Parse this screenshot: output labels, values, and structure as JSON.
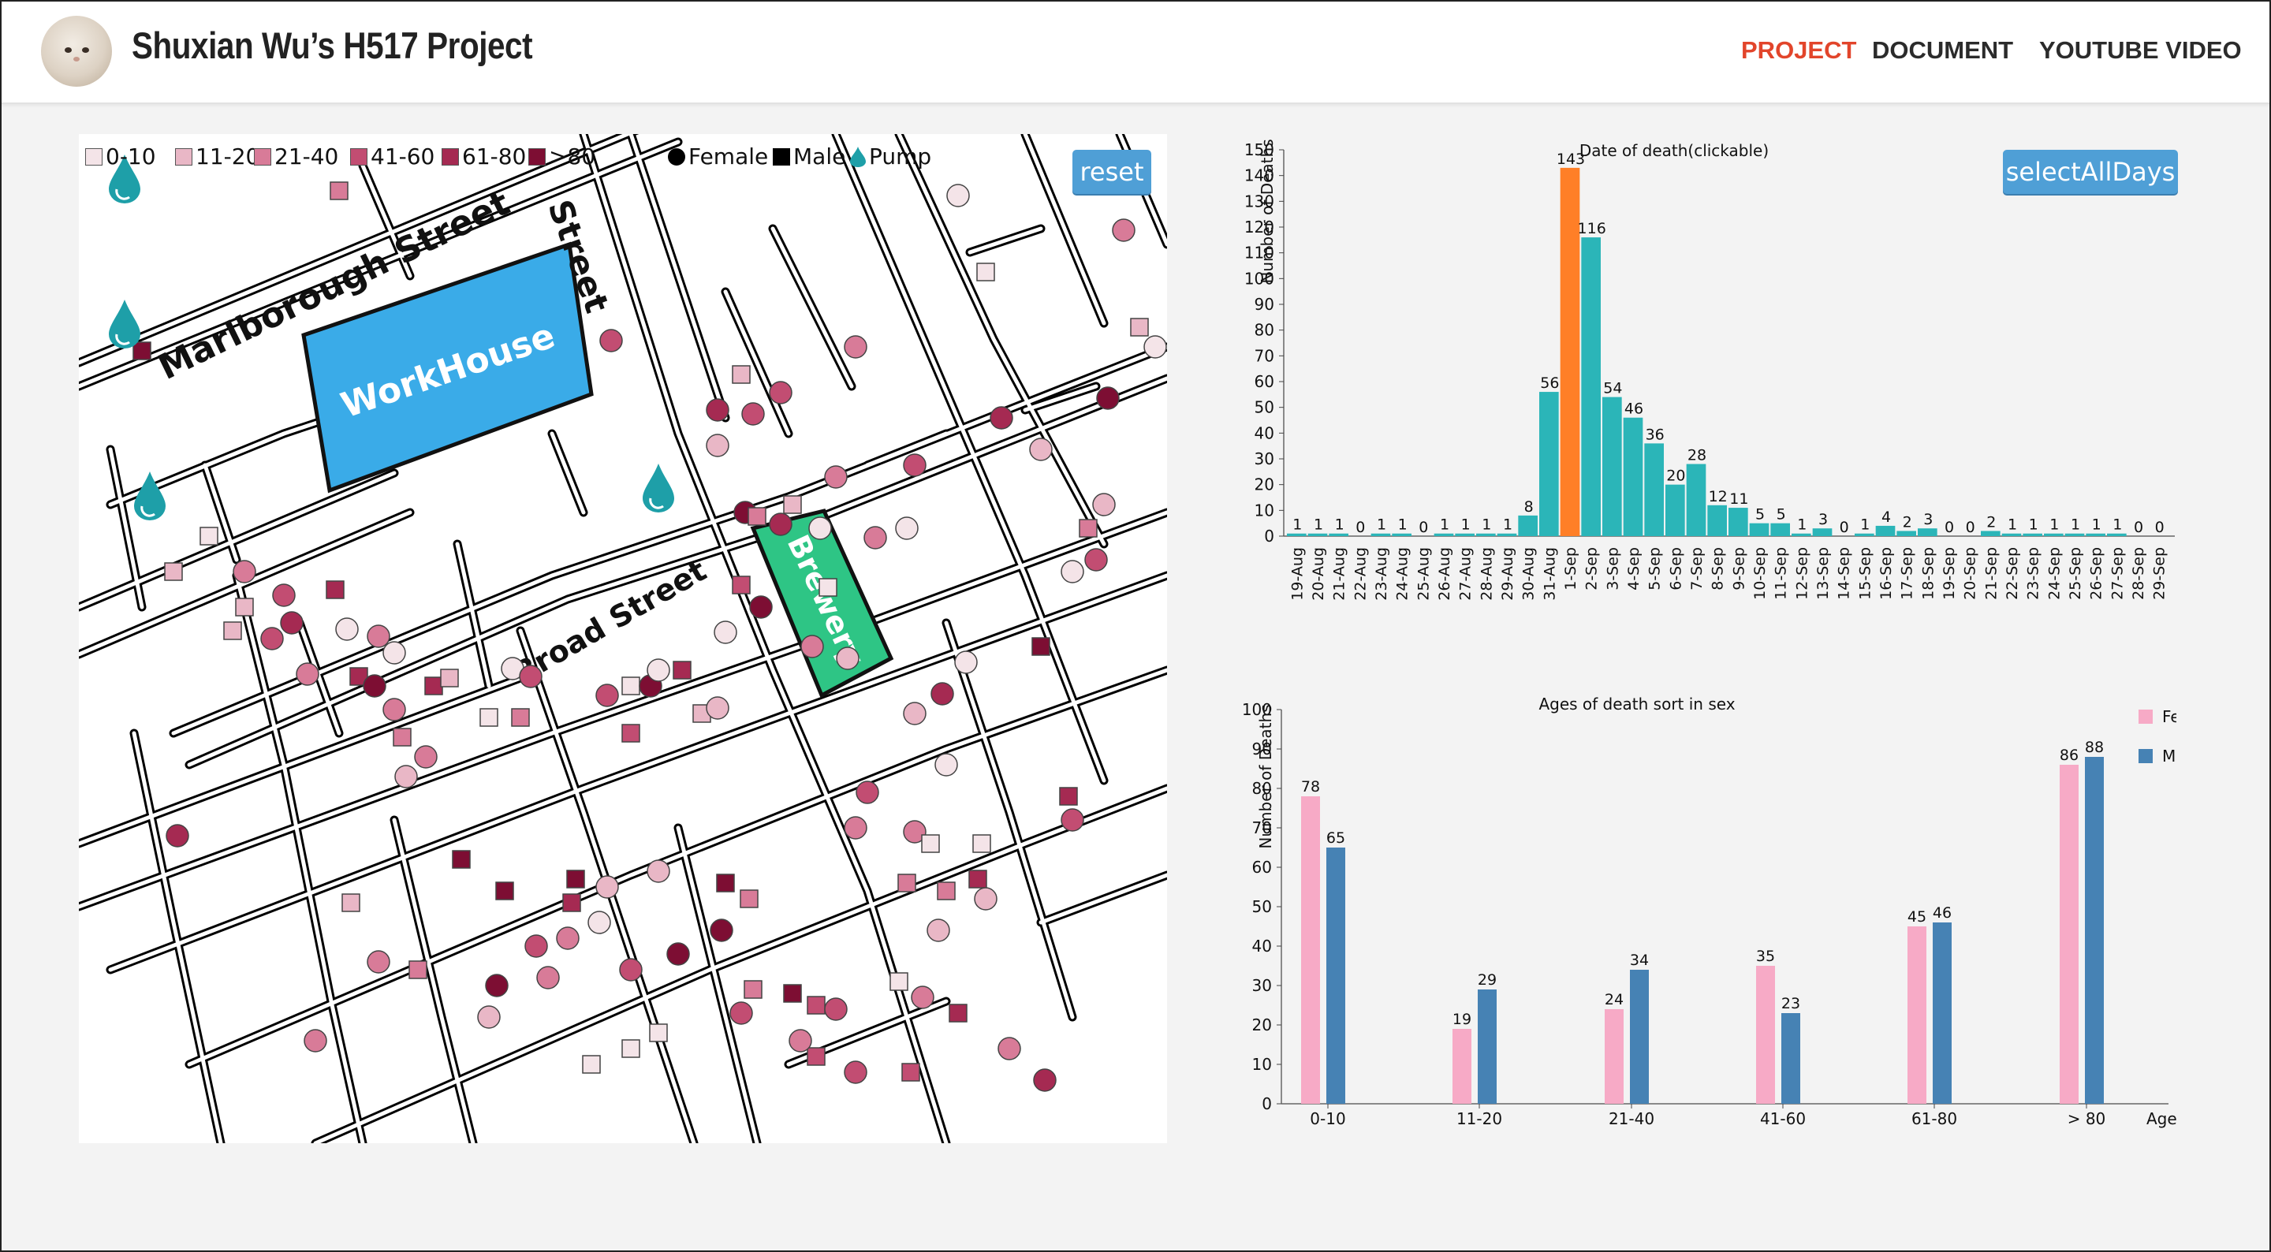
{
  "header": {
    "brand": "Shuxian Wu’s H517 Project",
    "nav": [
      "PROJECT",
      "DOCUMENT",
      "YOUTUBE VIDEO"
    ],
    "active_nav": "PROJECT",
    "accent": "#e2452b"
  },
  "map": {
    "reset_label": "reset",
    "legend": {
      "age_groups": [
        "0-10",
        "11-20",
        "21-40",
        "41-60",
        "61-80",
        ">80"
      ],
      "age_colors": [
        "#f4e4e8",
        "#e9b7c6",
        "#d87b98",
        "#c24d72",
        "#a52a52",
        "#7d0e33"
      ],
      "female": "Female",
      "male": "Male",
      "pump": "Pump"
    },
    "labels": {
      "workhouse": "WorkHouse",
      "brewery": "Brewery",
      "marlborough": "Marlborough Street",
      "broad": "Broad Street",
      "street_fragment": "Street"
    },
    "colors": {
      "workhouse": "#3aabe8",
      "brewery": "#2ec585",
      "pump": "#1e9fa8"
    }
  },
  "date_chart": {
    "button_label": "selectAllDays",
    "chart_data": {
      "type": "bar",
      "title": "Date of death(clickable)",
      "ylabel": "Number of Deaths",
      "ylim": [
        0,
        150
      ],
      "yticks": [
        0,
        10,
        20,
        30,
        40,
        50,
        60,
        70,
        80,
        90,
        100,
        110,
        120,
        130,
        140,
        150
      ],
      "categories": [
        "19-Aug",
        "20-Aug",
        "21-Aug",
        "22-Aug",
        "23-Aug",
        "24-Aug",
        "25-Aug",
        "26-Aug",
        "27-Aug",
        "28-Aug",
        "29-Aug",
        "30-Aug",
        "31-Aug",
        "1-Sep",
        "2-Sep",
        "3-Sep",
        "4-Sep",
        "5-Sep",
        "6-Sep",
        "7-Sep",
        "8-Sep",
        "9-Sep",
        "10-Sep",
        "11-Sep",
        "12-Sep",
        "13-Sep",
        "14-Sep",
        "15-Sep",
        "16-Sep",
        "17-Sep",
        "18-Sep",
        "19-Sep",
        "20-Sep",
        "21-Sep",
        "22-Sep",
        "23-Sep",
        "24-Sep",
        "25-Sep",
        "26-Sep",
        "27-Sep",
        "28-Sep",
        "29-Sep"
      ],
      "values": [
        1,
        1,
        1,
        0,
        1,
        1,
        0,
        1,
        1,
        1,
        1,
        8,
        56,
        143,
        116,
        54,
        46,
        36,
        20,
        28,
        12,
        11,
        5,
        5,
        1,
        3,
        0,
        1,
        4,
        2,
        3,
        0,
        0,
        2,
        1,
        1,
        1,
        1,
        1,
        1,
        0,
        0
      ],
      "highlight_index": 13,
      "colors": {
        "bar": "#2bb5b8",
        "highlight": "#ff7f27"
      }
    }
  },
  "age_chart": {
    "chart_data": {
      "type": "bar",
      "title": "Ages of death sort in sex",
      "ylabel": "Number of Deaths",
      "xlabel": "Age",
      "ylim": [
        0,
        100
      ],
      "yticks": [
        0,
        10,
        20,
        30,
        40,
        50,
        60,
        70,
        80,
        90,
        100
      ],
      "categories": [
        "0-10",
        "11-20",
        "21-40",
        "41-60",
        "61-80",
        "> 80"
      ],
      "series": [
        {
          "name": "Female",
          "values": [
            78,
            19,
            24,
            35,
            45,
            86
          ],
          "color": "#f7aac6"
        },
        {
          "name": "Male",
          "values": [
            65,
            29,
            34,
            23,
            46,
            88
          ],
          "color": "#4682b4"
        }
      ],
      "legend_position": "top-right"
    }
  }
}
